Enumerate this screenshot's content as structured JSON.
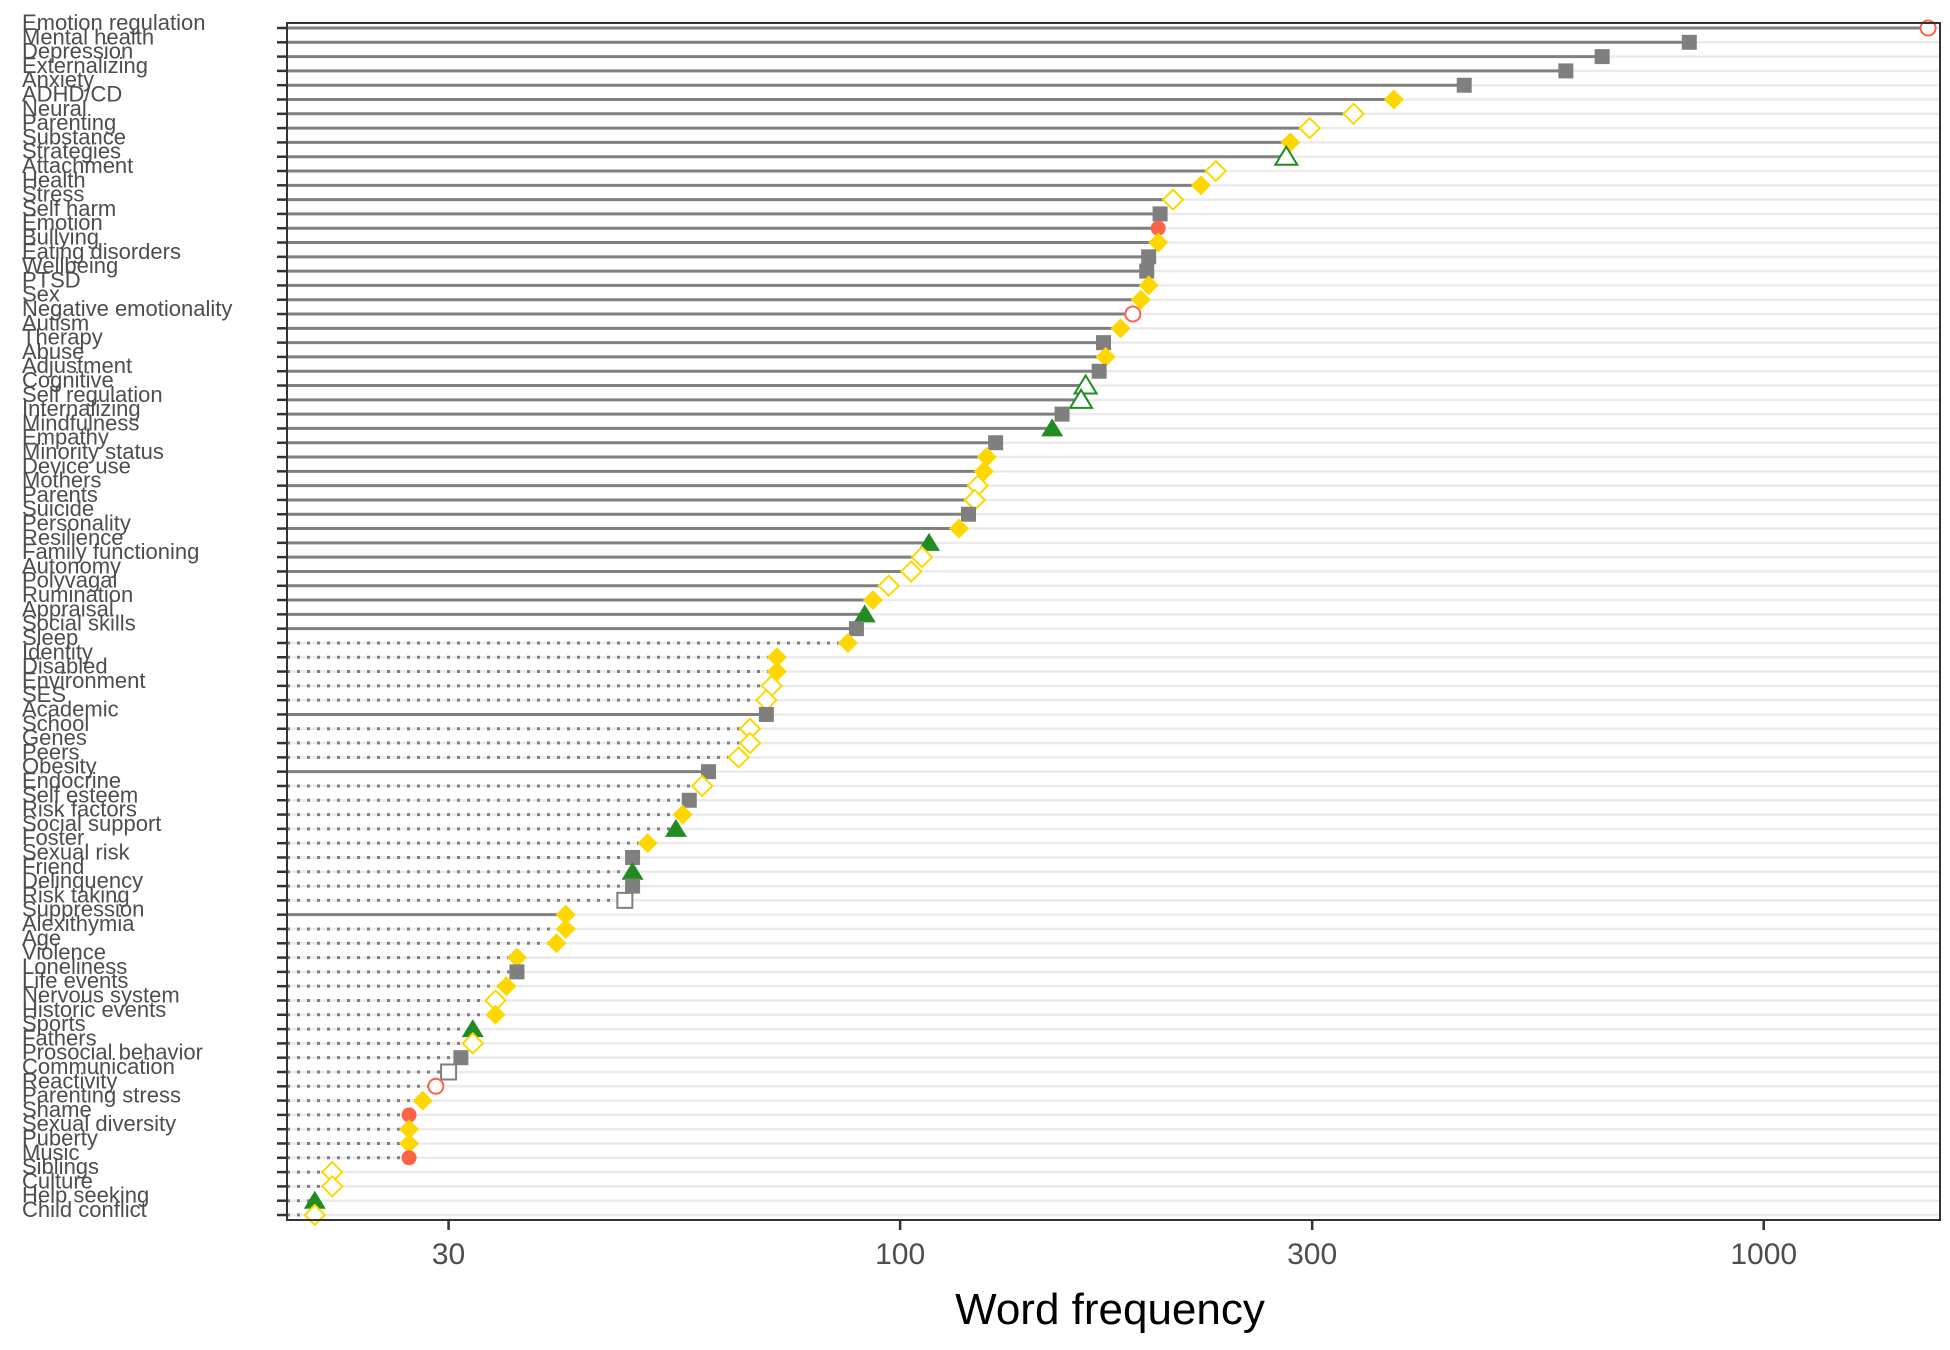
{
  "chart_data": {
    "type": "scatter",
    "xlabel": "Word frequency",
    "x_scale": "log",
    "xlim": [
      19.5,
      1600
    ],
    "x_ticks": [
      30,
      100,
      300,
      1000
    ],
    "x_tick_labels": [
      "30",
      "100",
      "300",
      "1000"
    ],
    "grid": "horizontal",
    "legend": "none",
    "colors": {
      "grey": "#7f7f7f",
      "gold": "#ffd700",
      "green": "#228b22",
      "red": "#ff6347",
      "segment": "#808080",
      "gridline": "#ebebeb"
    },
    "points": [
      {
        "label": "Emotion regulation",
        "value": 1550,
        "shape": "circle",
        "fill": "open",
        "color": "red",
        "line": "solid"
      },
      {
        "label": "Mental health",
        "value": 820,
        "shape": "square",
        "fill": "solid",
        "color": "grey",
        "line": "solid"
      },
      {
        "label": "Depression",
        "value": 650,
        "shape": "square",
        "fill": "solid",
        "color": "grey",
        "line": "solid"
      },
      {
        "label": "Externalizing",
        "value": 590,
        "shape": "square",
        "fill": "solid",
        "color": "grey",
        "line": "solid"
      },
      {
        "label": "Anxiety",
        "value": 450,
        "shape": "square",
        "fill": "solid",
        "color": "grey",
        "line": "solid"
      },
      {
        "label": "ADHD/CD",
        "value": 373,
        "shape": "diamond",
        "fill": "solid",
        "color": "gold",
        "line": "solid"
      },
      {
        "label": "Neural",
        "value": 335,
        "shape": "diamond",
        "fill": "open",
        "color": "gold",
        "line": "solid"
      },
      {
        "label": "Parenting",
        "value": 298,
        "shape": "diamond",
        "fill": "open",
        "color": "gold",
        "line": "solid"
      },
      {
        "label": "Substance",
        "value": 283,
        "shape": "diamond",
        "fill": "solid",
        "color": "gold",
        "line": "solid"
      },
      {
        "label": "Strategies",
        "value": 280,
        "shape": "triangle",
        "fill": "open",
        "color": "green",
        "line": "solid"
      },
      {
        "label": "Attachment",
        "value": 232,
        "shape": "diamond",
        "fill": "open",
        "color": "gold",
        "line": "solid"
      },
      {
        "label": "Health",
        "value": 223,
        "shape": "diamond",
        "fill": "solid",
        "color": "gold",
        "line": "solid"
      },
      {
        "label": "Stress",
        "value": 207,
        "shape": "diamond",
        "fill": "open",
        "color": "gold",
        "line": "solid"
      },
      {
        "label": "Self harm",
        "value": 200,
        "shape": "square",
        "fill": "solid",
        "color": "grey",
        "line": "solid"
      },
      {
        "label": "Emotion",
        "value": 199,
        "shape": "circle",
        "fill": "solid",
        "color": "red",
        "line": "solid"
      },
      {
        "label": "Bullying",
        "value": 199,
        "shape": "diamond",
        "fill": "solid",
        "color": "gold",
        "line": "solid"
      },
      {
        "label": "Eating disorders",
        "value": 194,
        "shape": "square",
        "fill": "solid",
        "color": "grey",
        "line": "solid"
      },
      {
        "label": "Wellbeing",
        "value": 193,
        "shape": "square",
        "fill": "solid",
        "color": "grey",
        "line": "solid"
      },
      {
        "label": "PTSD",
        "value": 194,
        "shape": "diamond",
        "fill": "solid",
        "color": "gold",
        "line": "solid"
      },
      {
        "label": "Sex",
        "value": 190,
        "shape": "diamond",
        "fill": "solid",
        "color": "gold",
        "line": "solid"
      },
      {
        "label": "Negative emotionality",
        "value": 186,
        "shape": "circle",
        "fill": "open",
        "color": "red",
        "line": "solid"
      },
      {
        "label": "Autism",
        "value": 180,
        "shape": "diamond",
        "fill": "solid",
        "color": "gold",
        "line": "solid"
      },
      {
        "label": "Therapy",
        "value": 172,
        "shape": "square",
        "fill": "solid",
        "color": "grey",
        "line": "solid"
      },
      {
        "label": "Abuse",
        "value": 173,
        "shape": "diamond",
        "fill": "solid",
        "color": "gold",
        "line": "solid"
      },
      {
        "label": "Adjustment",
        "value": 170,
        "shape": "square",
        "fill": "solid",
        "color": "grey",
        "line": "solid"
      },
      {
        "label": "Cognitive",
        "value": 164,
        "shape": "triangle",
        "fill": "open",
        "color": "green",
        "line": "solid"
      },
      {
        "label": "Self regulation",
        "value": 162,
        "shape": "triangle",
        "fill": "open",
        "color": "green",
        "line": "solid"
      },
      {
        "label": "Internalizing",
        "value": 154,
        "shape": "square",
        "fill": "solid",
        "color": "grey",
        "line": "solid"
      },
      {
        "label": "Mindfulness",
        "value": 150,
        "shape": "triangle",
        "fill": "solid",
        "color": "green",
        "line": "solid"
      },
      {
        "label": "Empathy",
        "value": 129,
        "shape": "square",
        "fill": "solid",
        "color": "grey",
        "line": "solid"
      },
      {
        "label": "Minority status",
        "value": 126,
        "shape": "diamond",
        "fill": "solid",
        "color": "gold",
        "line": "solid"
      },
      {
        "label": "Device use",
        "value": 125,
        "shape": "diamond",
        "fill": "solid",
        "color": "gold",
        "line": "solid"
      },
      {
        "label": "Mothers",
        "value": 123,
        "shape": "diamond",
        "fill": "open",
        "color": "gold",
        "line": "solid"
      },
      {
        "label": "Parents",
        "value": 122,
        "shape": "diamond",
        "fill": "open",
        "color": "gold",
        "line": "solid"
      },
      {
        "label": "Suicide",
        "value": 120,
        "shape": "square",
        "fill": "solid",
        "color": "grey",
        "line": "solid"
      },
      {
        "label": "Personality",
        "value": 117,
        "shape": "diamond",
        "fill": "solid",
        "color": "gold",
        "line": "solid"
      },
      {
        "label": "Resilience",
        "value": 108,
        "shape": "triangle",
        "fill": "solid",
        "color": "green",
        "line": "solid"
      },
      {
        "label": "Family functioning",
        "value": 106,
        "shape": "diamond",
        "fill": "open",
        "color": "gold",
        "line": "solid"
      },
      {
        "label": "Autonomy",
        "value": 103,
        "shape": "diamond",
        "fill": "open",
        "color": "gold",
        "line": "solid"
      },
      {
        "label": "Polyvagal",
        "value": 97,
        "shape": "diamond",
        "fill": "open",
        "color": "gold",
        "line": "solid"
      },
      {
        "label": "Rumination",
        "value": 93,
        "shape": "diamond",
        "fill": "solid",
        "color": "gold",
        "line": "solid"
      },
      {
        "label": "Appraisal",
        "value": 91,
        "shape": "triangle",
        "fill": "solid",
        "color": "green",
        "line": "solid"
      },
      {
        "label": "Social skills",
        "value": 89,
        "shape": "square",
        "fill": "solid",
        "color": "grey",
        "line": "solid"
      },
      {
        "label": "Sleep",
        "value": 87,
        "shape": "diamond",
        "fill": "solid",
        "color": "gold",
        "line": "dotted"
      },
      {
        "label": "Identity",
        "value": 72,
        "shape": "diamond",
        "fill": "solid",
        "color": "gold",
        "line": "dotted"
      },
      {
        "label": "Disabled",
        "value": 72,
        "shape": "diamond",
        "fill": "solid",
        "color": "gold",
        "line": "dotted"
      },
      {
        "label": "Environment",
        "value": 71,
        "shape": "diamond",
        "fill": "open",
        "color": "gold",
        "line": "dotted"
      },
      {
        "label": "SES",
        "value": 70,
        "shape": "diamond",
        "fill": "open",
        "color": "gold",
        "line": "dotted"
      },
      {
        "label": "Academic",
        "value": 70,
        "shape": "square",
        "fill": "solid",
        "color": "grey",
        "line": "solid"
      },
      {
        "label": "School",
        "value": 67,
        "shape": "diamond",
        "fill": "open",
        "color": "gold",
        "line": "dotted"
      },
      {
        "label": "Genes",
        "value": 67,
        "shape": "diamond",
        "fill": "open",
        "color": "gold",
        "line": "dotted"
      },
      {
        "label": "Peers",
        "value": 65,
        "shape": "diamond",
        "fill": "open",
        "color": "gold",
        "line": "dotted"
      },
      {
        "label": "Obesity",
        "value": 60,
        "shape": "square",
        "fill": "solid",
        "color": "grey",
        "line": "solid"
      },
      {
        "label": "Endocrine",
        "value": 59,
        "shape": "diamond",
        "fill": "open",
        "color": "gold",
        "line": "dotted"
      },
      {
        "label": "Self esteem",
        "value": 57,
        "shape": "square",
        "fill": "solid",
        "color": "grey",
        "line": "dotted"
      },
      {
        "label": "Risk factors",
        "value": 56,
        "shape": "diamond",
        "fill": "solid",
        "color": "gold",
        "line": "dotted"
      },
      {
        "label": "Social support",
        "value": 55,
        "shape": "triangle",
        "fill": "solid",
        "color": "green",
        "line": "dotted"
      },
      {
        "label": "Foster",
        "value": 51,
        "shape": "diamond",
        "fill": "solid",
        "color": "gold",
        "line": "dotted"
      },
      {
        "label": "Sexual risk",
        "value": 49,
        "shape": "square",
        "fill": "solid",
        "color": "grey",
        "line": "dotted"
      },
      {
        "label": "Friend",
        "value": 49,
        "shape": "triangle",
        "fill": "solid",
        "color": "green",
        "line": "dotted"
      },
      {
        "label": "Delinquency",
        "value": 49,
        "shape": "square",
        "fill": "solid",
        "color": "grey",
        "line": "dotted"
      },
      {
        "label": "Risk taking",
        "value": 48,
        "shape": "square",
        "fill": "open",
        "color": "grey",
        "line": "dotted"
      },
      {
        "label": "Suppression",
        "value": 41,
        "shape": "diamond",
        "fill": "solid",
        "color": "gold",
        "line": "solid"
      },
      {
        "label": "Alexithymia",
        "value": 41,
        "shape": "diamond",
        "fill": "solid",
        "color": "gold",
        "line": "dotted"
      },
      {
        "label": "Age",
        "value": 40,
        "shape": "diamond",
        "fill": "solid",
        "color": "gold",
        "line": "dotted"
      },
      {
        "label": "Violence",
        "value": 36,
        "shape": "diamond",
        "fill": "solid",
        "color": "gold",
        "line": "dotted"
      },
      {
        "label": "Loneliness",
        "value": 36,
        "shape": "square",
        "fill": "solid",
        "color": "grey",
        "line": "dotted"
      },
      {
        "label": "Life events",
        "value": 35,
        "shape": "diamond",
        "fill": "solid",
        "color": "gold",
        "line": "dotted"
      },
      {
        "label": "Nervous system",
        "value": 34,
        "shape": "diamond",
        "fill": "open",
        "color": "gold",
        "line": "dotted"
      },
      {
        "label": "Historic events",
        "value": 34,
        "shape": "diamond",
        "fill": "solid",
        "color": "gold",
        "line": "dotted"
      },
      {
        "label": "Sports",
        "value": 32,
        "shape": "triangle",
        "fill": "solid",
        "color": "green",
        "line": "dotted"
      },
      {
        "label": "Fathers",
        "value": 32,
        "shape": "diamond",
        "fill": "open",
        "color": "gold",
        "line": "dotted"
      },
      {
        "label": "Prosocial behavior",
        "value": 31,
        "shape": "square",
        "fill": "solid",
        "color": "grey",
        "line": "dotted"
      },
      {
        "label": "Communication",
        "value": 30,
        "shape": "square",
        "fill": "open",
        "color": "grey",
        "line": "dotted"
      },
      {
        "label": "Reactivity",
        "value": 29,
        "shape": "circle",
        "fill": "open",
        "color": "red",
        "line": "dotted"
      },
      {
        "label": "Parenting stress",
        "value": 28,
        "shape": "diamond",
        "fill": "solid",
        "color": "gold",
        "line": "dotted"
      },
      {
        "label": "Shame",
        "value": 27,
        "shape": "circle",
        "fill": "solid",
        "color": "red",
        "line": "dotted"
      },
      {
        "label": "Sexual diversity",
        "value": 27,
        "shape": "diamond",
        "fill": "solid",
        "color": "gold",
        "line": "dotted"
      },
      {
        "label": "Puberty",
        "value": 27,
        "shape": "diamond",
        "fill": "solid",
        "color": "gold",
        "line": "dotted"
      },
      {
        "label": "Music",
        "value": 27,
        "shape": "circle",
        "fill": "solid",
        "color": "red",
        "line": "dotted"
      },
      {
        "label": "Siblings",
        "value": 22,
        "shape": "diamond",
        "fill": "open",
        "color": "gold",
        "line": "dotted"
      },
      {
        "label": "Culture",
        "value": 22,
        "shape": "diamond",
        "fill": "open",
        "color": "gold",
        "line": "dotted"
      },
      {
        "label": "Help seeking",
        "value": 21,
        "shape": "triangle",
        "fill": "solid",
        "color": "green",
        "line": "dotted"
      },
      {
        "label": "Child conflict",
        "value": 21,
        "shape": "diamond",
        "fill": "open",
        "color": "gold",
        "line": "dotted"
      }
    ]
  }
}
